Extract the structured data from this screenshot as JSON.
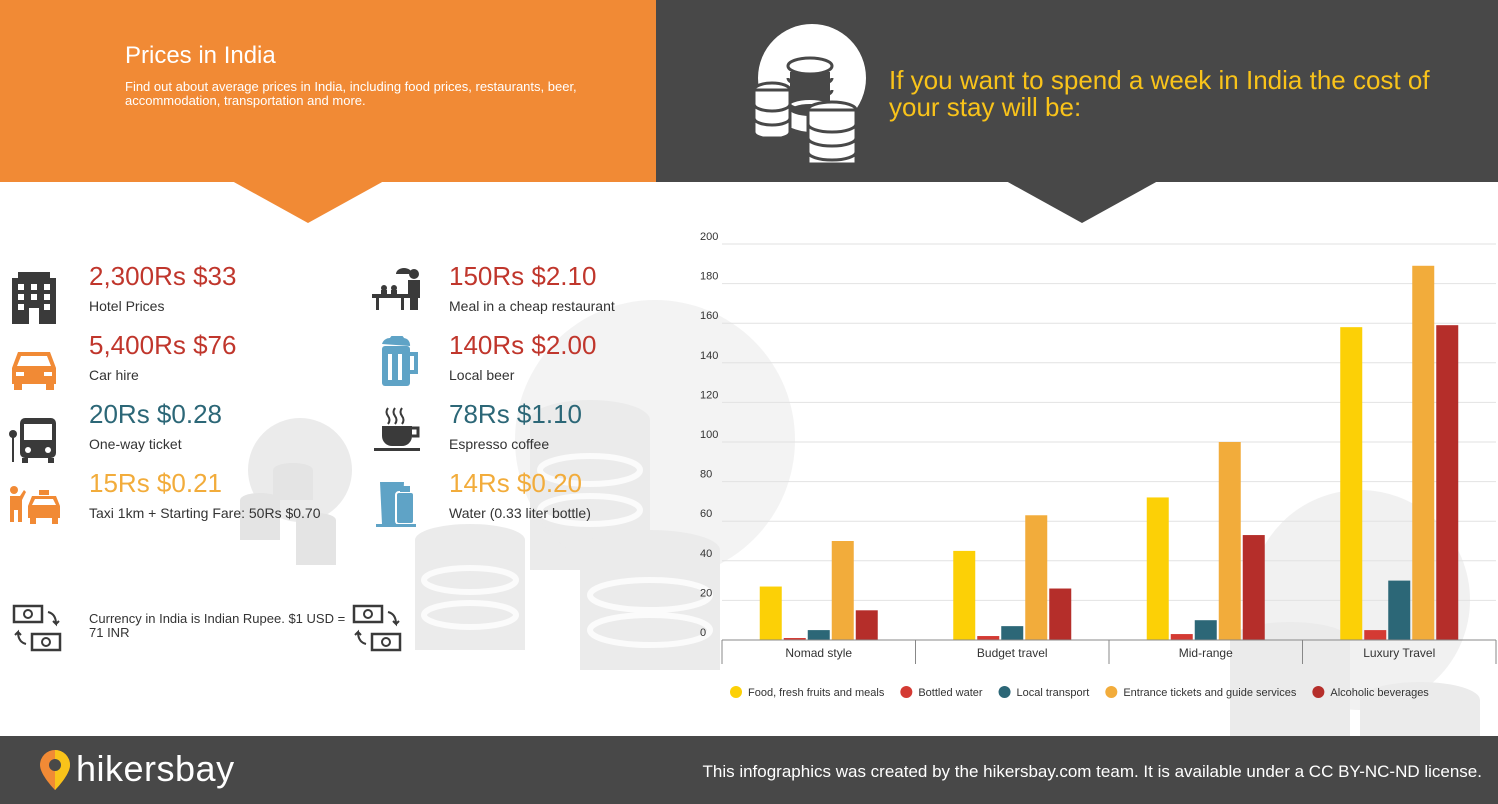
{
  "header": {
    "title": "Prices in India",
    "subtitle": "Find out about average prices in India, including food prices, restaurants, beer, accommodation, transportation and more.",
    "right_text": "If you want to spend a week in India the cost of your stay will be:"
  },
  "prices": [
    {
      "value": "2,300Rs $33",
      "label": "Hotel Prices",
      "icon": "hotel-icon",
      "color": "#c0362c"
    },
    {
      "value": "5,400Rs $76",
      "label": "Car hire",
      "icon": "car-icon",
      "color": "#c0362c"
    },
    {
      "value": "20Rs $0.28",
      "label": "One-way ticket",
      "icon": "bus-icon",
      "color": "#2c6777"
    },
    {
      "value": "15Rs $0.21",
      "label": "Taxi 1km + Starting Fare: 50Rs $0.70",
      "icon": "taxi-icon",
      "color": "#f2ac3b"
    },
    {
      "value": "150Rs $2.10",
      "label": "Meal in a cheap restaurant",
      "icon": "restaurant-icon",
      "color": "#c0362c"
    },
    {
      "value": "140Rs $2.00",
      "label": "Local beer",
      "icon": "beer-icon",
      "color": "#c0362c"
    },
    {
      "value": "78Rs $1.10",
      "label": "Espresso coffee",
      "icon": "coffee-icon",
      "color": "#2c6777"
    },
    {
      "value": "14Rs $0.20",
      "label": "Water (0.33 liter bottle)",
      "icon": "water-icon",
      "color": "#f2ac3b"
    }
  ],
  "currency": {
    "text": "Currency in India is Indian Rupee. $1 USD = 71 INR",
    "icon": "currency-exchange-icon"
  },
  "chart_data": {
    "type": "bar",
    "categories": [
      "Nomad style",
      "Budget travel",
      "Mid-range",
      "Luxury Travel"
    ],
    "series": [
      {
        "name": "Food, fresh fruits and meals",
        "color": "#fcd006",
        "values": [
          27,
          45,
          72,
          158
        ]
      },
      {
        "name": "Bottled water",
        "color": "#d43a33",
        "values": [
          1,
          2,
          3,
          5
        ]
      },
      {
        "name": "Local transport",
        "color": "#2c6777",
        "values": [
          5,
          7,
          10,
          30
        ]
      },
      {
        "name": "Entrance tickets and guide services",
        "color": "#f2ac3b",
        "values": [
          50,
          63,
          100,
          189
        ]
      },
      {
        "name": "Alcoholic beverages",
        "color": "#b52e2a",
        "values": [
          15,
          26,
          53,
          159
        ]
      }
    ],
    "ylim": [
      0,
      200
    ],
    "yticks": [
      0,
      20,
      40,
      60,
      80,
      100,
      120,
      140,
      160,
      180,
      200
    ],
    "grid": true,
    "legend": "bottom"
  },
  "footer": {
    "logo": "hikersbay",
    "text": "This infographics was created by the hikersbay.com team. It is available under a CC BY-NC-ND license."
  }
}
